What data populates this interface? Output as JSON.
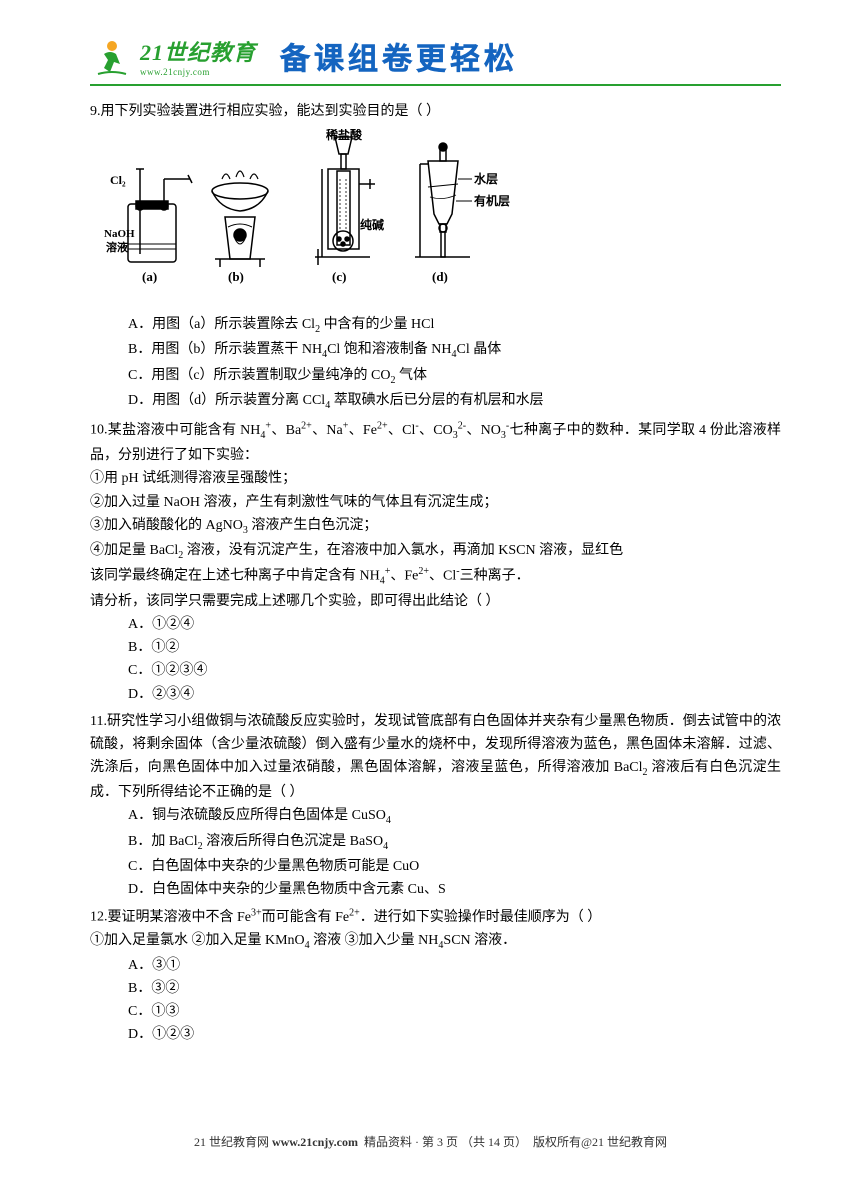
{
  "header": {
    "logo_main": "21世纪教育",
    "logo_sub": "www.21cnjy.com",
    "slogan": "备课组卷更轻松"
  },
  "questions": {
    "q9": {
      "number": "9.",
      "text": "用下列实验装置进行相应实验，能达到实验目的是（ ）",
      "diagram_labels": {
        "cl2": "Cl₂",
        "naoh": "NaOH",
        "solution": "溶液",
        "hcl_dilute": "稀盐酸",
        "soda": "纯碱",
        "water_layer": "水层",
        "organic_layer": "有机层",
        "a": "(a)",
        "b": "(b)",
        "c": "(c)",
        "d": "(d)"
      },
      "options_html": [
        "A．用图（a）所示装置除去 Cl<sub>2</sub> 中含有的少量 HCl",
        "B．用图（b）所示装置蒸干 NH<sub>4</sub>Cl 饱和溶液制备 NH<sub>4</sub>Cl 晶体",
        "C．用图（c）所示装置制取少量纯净的 CO<sub>2</sub> 气体",
        "D．用图（d）所示装置分离 CCl<sub>4</sub> 萃取碘水后已分层的有机层和水层"
      ]
    },
    "q10": {
      "number": "10.",
      "stem_html": "某盐溶液中可能含有 NH<sub>4</sub><sup>+</sup>、Ba<sup>2+</sup>、Na<sup>+</sup>、Fe<sup>2+</sup>、Cl<sup>-</sup>、CO<sub>3</sub><sup>2-</sup>、NO<sub>3</sub><sup>-</sup>七种离子中的数种．某同学取 4 份此溶液样品，分别进行了如下实验：",
      "subs_html": [
        "①用 pH 试纸测得溶液呈强酸性；",
        "②加入过量 NaOH 溶液，产生有刺激性气味的气体且有沉淀生成；",
        "③加入硝酸酸化的 AgNO<sub>3</sub> 溶液产生白色沉淀；",
        "④加足量 BaCl<sub>2</sub> 溶液，没有沉淀产生，在溶液中加入氯水，再滴加 KSCN 溶液，显红色"
      ],
      "conclusion_html": "该同学最终确定在上述七种离子中肯定含有 NH<sub>4</sub><sup>+</sup>、Fe<sup>2+</sup>、Cl<sup>-</sup>三种离子．",
      "ask": "请分析，该同学只需要完成上述哪几个实验，即可得出此结论（ ）",
      "options": [
        "A．①②④",
        "B．①②",
        "C．①②③④",
        "D．②③④"
      ]
    },
    "q11": {
      "number": "11.",
      "stem_html": "研究性学习小组做铜与浓硫酸反应实验时，发现试管底部有白色固体并夹杂有少量黑色物质．倒去试管中的浓硫酸，将剩余固体（含少量浓硫酸）倒入盛有少量水的烧杯中，发现所得溶液为蓝色，黑色固体未溶解．过滤、洗涤后，向黑色固体中加入过量浓硝酸，黑色固体溶解，溶液呈蓝色，所得溶液加 BaCl<sub>2</sub> 溶液后有白色沉淀生成．下列所得结论不正确的是（ ）",
      "options_html": [
        "A．铜与浓硫酸反应所得白色固体是 CuSO<sub>4</sub>",
        "B．加 BaCl<sub>2</sub> 溶液后所得白色沉淀是 BaSO<sub>4</sub>",
        "C．白色固体中夹杂的少量黑色物质可能是 CuO",
        "D．白色固体中夹杂的少量黑色物质中含元素 Cu、S"
      ]
    },
    "q12": {
      "number": "12.",
      "stem_html": "要证明某溶液中不含 Fe<sup>3+</sup>而可能含有 Fe<sup>2+</sup>．进行如下实验操作时最佳顺序为（ ）",
      "subs_html": "①加入足量氯水  ②加入足量 KMnO<sub>4</sub> 溶液  ③加入少量 NH<sub>4</sub>SCN 溶液．",
      "options": [
        "A．③①",
        "B．③②",
        "C．①③",
        "D．①②③"
      ]
    }
  },
  "footer": {
    "brand": "21 世纪教育网",
    "site": "www.21cnjy.com",
    "mid": "精品资料 · 第",
    "page_current": "3",
    "page_mid2": "页  （共",
    "page_total": "14",
    "page_end": "页）",
    "copyright": "版权所有@21 世纪教育网"
  }
}
